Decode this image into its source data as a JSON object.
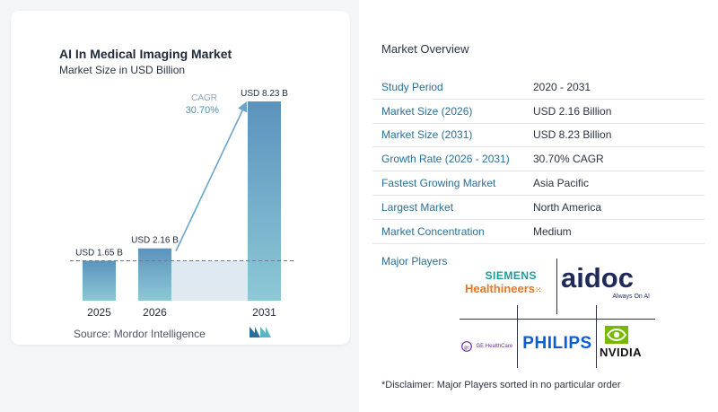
{
  "chart_data": {
    "type": "bar",
    "title": "AI In Medical Imaging Market",
    "subtitle": "Market Size in USD Billion",
    "categories": [
      "2025",
      "2026",
      "2031"
    ],
    "values": [
      1.65,
      2.16,
      8.23
    ],
    "value_labels": [
      "USD 1.65 B",
      "USD 2.16 B",
      "USD 8.23 B"
    ],
    "cagr_label": "CAGR",
    "cagr_value": "30.70%",
    "ylim": [
      0,
      8.23
    ],
    "grid": false
  },
  "source": "Source:  Mordor Intelligence",
  "overview": {
    "title": "Market Overview",
    "rows": [
      {
        "key": "Study Period",
        "value": "2020 - 2031"
      },
      {
        "key": "Market Size (2026)",
        "value": "USD 2.16 Billion"
      },
      {
        "key": "Market Size (2031)",
        "value": "USD 8.23 Billion"
      },
      {
        "key": "Growth Rate (2026 - 2031)",
        "value": "30.70% CAGR"
      },
      {
        "key": "Fastest Growing Market",
        "value": "Asia Pacific"
      },
      {
        "key": "Largest Market",
        "value": "North America"
      },
      {
        "key": "Market Concentration",
        "value": "Medium"
      }
    ],
    "players_label": "Major Players",
    "players": {
      "siemens_top": "SIEMENS",
      "siemens_bottom": "Healthineers",
      "aidoc": "aidoc",
      "aidoc_tag": "Always On AI",
      "ge": "GE HealthCare",
      "philips": "PHILIPS",
      "nvidia": "NVIDIA"
    },
    "disclaimer": "*Disclaimer: Major Players sorted in no particular order"
  },
  "colors": {
    "bar_top": "#5b93bd",
    "bar_bottom": "#8dc8d6",
    "accent": "#2a6f97",
    "arrow": "#6aa5c9"
  }
}
